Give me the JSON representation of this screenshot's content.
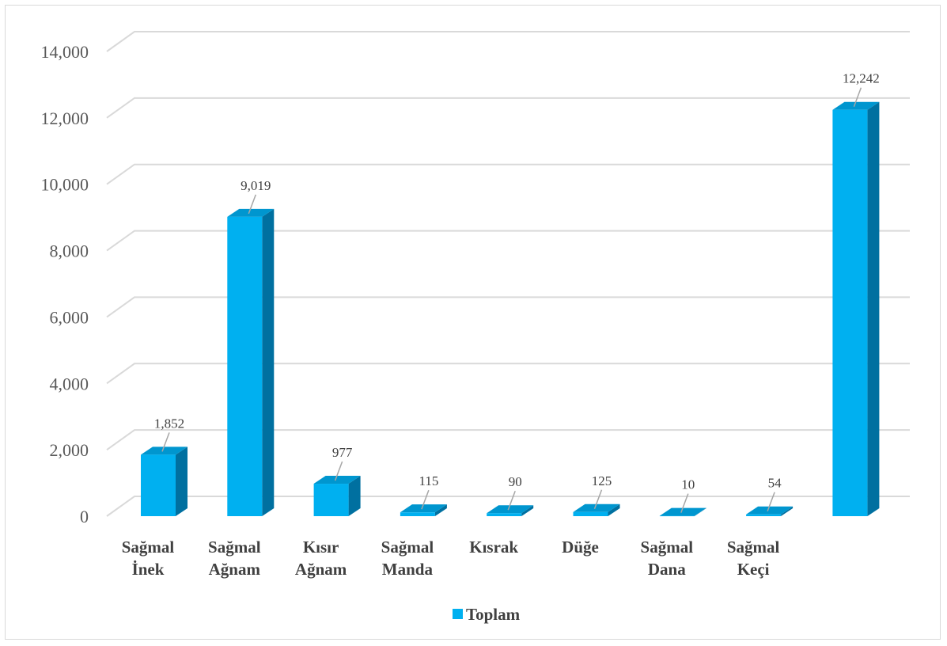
{
  "chart_data": {
    "type": "bar",
    "title": "",
    "xlabel": "",
    "ylabel": "",
    "ylim": [
      0,
      14000
    ],
    "yticks": [
      "0",
      "2,000",
      "4,000",
      "6,000",
      "8,000",
      "10,000",
      "12,000",
      "14,000"
    ],
    "grid": true,
    "legend_position": "bottom",
    "categories": [
      [
        "Sağmal",
        "İnek"
      ],
      [
        "Sağmal",
        "Ağnam"
      ],
      [
        "Kısır",
        "Ağnam"
      ],
      [
        "Sağmal",
        "Manda"
      ],
      [
        "Kısrak"
      ],
      [
        "Düğe"
      ],
      [
        "Sağmal",
        "Dana"
      ],
      [
        "Sağmal",
        "Keçi"
      ],
      [
        ""
      ]
    ],
    "series": [
      {
        "name": "Toplam",
        "values": [
          1852,
          9019,
          977,
          115,
          90,
          125,
          10,
          54,
          12242
        ],
        "labels": [
          "1,852",
          "9,019",
          "977",
          "115",
          "90",
          "125",
          "10",
          "54",
          "12,242"
        ]
      }
    ],
    "colors": {
      "front": "#00B0F0",
      "side": "#0070A0",
      "top": "#0096CF",
      "grid": "#d9d9d9"
    }
  }
}
